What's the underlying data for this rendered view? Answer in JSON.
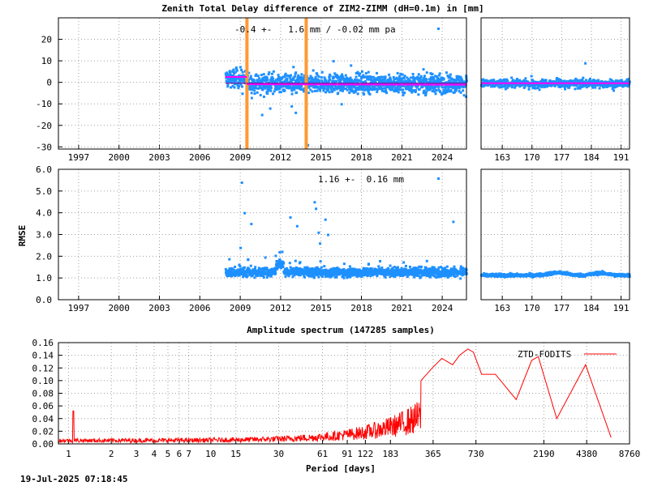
{
  "chart_data": [
    {
      "type": "scatter",
      "title": "Zenith Total Delay difference of ZIM2-ZIMM (dH=0.1m) in [mm]",
      "annotation": "-0.4 +-   1.6 mm / -0.02 mm pa",
      "ylim": [
        -31,
        30
      ],
      "yticks": [
        "-30",
        "-20",
        "-10",
        "0",
        "10",
        "20"
      ],
      "xlim": [
        1995.5,
        2025.8
      ],
      "xticks": [
        "1997",
        "2000",
        "2003",
        "2006",
        "2009",
        "2012",
        "2015",
        "2018",
        "2021",
        "2024"
      ],
      "data_start": 2007.9,
      "data_end": 2025.8,
      "center": -0.4,
      "spread": 1.6,
      "trend": -0.02,
      "vertical_markers": [
        2009.5,
        2013.9
      ],
      "colors": {
        "points": "#1e90ff",
        "trend": "#ff00ff",
        "mean": "#8b008b",
        "markers": "#ff9933"
      },
      "inset": {
        "xlim": [
          158,
          193
        ],
        "xticks": [
          "163",
          "170",
          "177",
          "184",
          "191"
        ]
      }
    },
    {
      "type": "scatter",
      "ylabel": "RMSE",
      "annotation": "1.16 +-  0.16 mm",
      "ylim": [
        0,
        6.0
      ],
      "yticks": [
        "0.0",
        "1.0",
        "2.0",
        "3.0",
        "4.0",
        "5.0",
        "6.0"
      ],
      "xlim": [
        1995.5,
        2025.8
      ],
      "xticks": [
        "1997",
        "2000",
        "2003",
        "2006",
        "2009",
        "2012",
        "2015",
        "2018",
        "2021",
        "2024"
      ],
      "center": 1.16,
      "spread": 0.16,
      "outliers": [
        [
          2009.1,
          5.4
        ],
        [
          2009.3,
          4.0
        ],
        [
          2009.8,
          3.5
        ],
        [
          2012.7,
          3.8
        ],
        [
          2013.2,
          3.4
        ],
        [
          2014.5,
          4.5
        ],
        [
          2014.6,
          4.2
        ],
        [
          2014.8,
          3.1
        ],
        [
          2015.3,
          3.7
        ],
        [
          2015.5,
          3.0
        ],
        [
          2024.8,
          3.6
        ],
        [
          2009.0,
          2.4
        ],
        [
          2011.9,
          2.2
        ],
        [
          2014.9,
          2.6
        ]
      ],
      "colors": {
        "points": "#1e90ff"
      },
      "inset": {
        "xlim": [
          158,
          193
        ],
        "xticks": [
          "163",
          "170",
          "177",
          "184",
          "191"
        ]
      }
    },
    {
      "type": "line",
      "title": "Amplitude spectrum (147285 samples)",
      "xlabel": "Period [days]",
      "legend": "ZTD-FODITS",
      "legend_position": "top-right",
      "xscale": "log",
      "xlim": [
        0.85,
        8760
      ],
      "ylim": [
        0,
        0.16
      ],
      "yticks": [
        "0.00",
        "0.02",
        "0.04",
        "0.06",
        "0.08",
        "0.10",
        "0.12",
        "0.14",
        "0.16"
      ],
      "xticks": [
        "1",
        "2",
        "3",
        "4",
        "5",
        "6",
        "7",
        "10",
        "15",
        "30",
        "61",
        "91",
        "122",
        "183",
        "365",
        "730",
        "2190",
        "4380",
        "8760"
      ],
      "xtick_values": [
        1,
        2,
        3,
        4,
        5,
        6,
        7,
        10,
        15,
        30,
        61,
        91,
        122,
        183,
        365,
        730,
        2190,
        4380,
        8760
      ],
      "peaks": [
        [
          1.08,
          0.052
        ],
        [
          0.95,
          0.022
        ]
      ],
      "long_period_points": [
        [
          300,
          0.1
        ],
        [
          360,
          0.12
        ],
        [
          420,
          0.135
        ],
        [
          500,
          0.125
        ],
        [
          560,
          0.14
        ],
        [
          640,
          0.15
        ],
        [
          700,
          0.145
        ],
        [
          800,
          0.11
        ],
        [
          1000,
          0.11
        ],
        [
          1400,
          0.07
        ],
        [
          1800,
          0.132
        ],
        [
          2000,
          0.138
        ],
        [
          2700,
          0.04
        ],
        [
          4300,
          0.125
        ],
        [
          6500,
          0.01
        ]
      ],
      "colors": {
        "line": "#ff0000"
      }
    }
  ],
  "timestamp": "19-Jul-2025 07:18:45"
}
